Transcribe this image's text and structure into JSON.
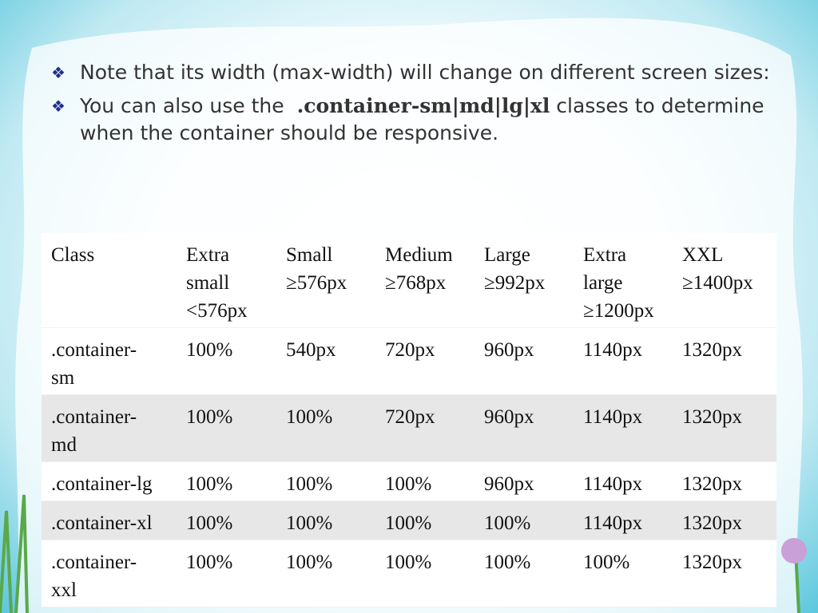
{
  "bullets": [
    {
      "text": "Note that its width (max-width) will change on different screen sizes:"
    },
    {
      "text": "You can also use the",
      "bold": ".container-sm|md|lg|xl",
      "after": "classes to determine when the container should be responsive."
    }
  ],
  "table": {
    "header": [
      [
        "Class"
      ],
      [
        "Extra",
        "small",
        "<576px"
      ],
      [
        "Small",
        "≥576px"
      ],
      [
        "Medium",
        "≥768px"
      ],
      [
        "Large",
        "≥992px"
      ],
      [
        "Extra",
        "large",
        "≥1200px"
      ],
      [
        "XXL",
        "≥1400px"
      ]
    ],
    "rows": [
      [
        [
          ".container-",
          "sm"
        ],
        [
          "100%"
        ],
        [
          "540px"
        ],
        [
          "720px"
        ],
        [
          "960px"
        ],
        [
          "1140px"
        ],
        [
          "1320px"
        ]
      ],
      [
        [
          ".container-",
          "md"
        ],
        [
          "100%"
        ],
        [
          "100%"
        ],
        [
          "720px"
        ],
        [
          "960px"
        ],
        [
          "1140px"
        ],
        [
          "1320px"
        ]
      ],
      [
        [
          ".container-lg"
        ],
        [
          "100%"
        ],
        [
          "100%"
        ],
        [
          "100%"
        ],
        [
          "960px"
        ],
        [
          "1140px"
        ],
        [
          "1320px"
        ]
      ],
      [
        [
          ".container-xl"
        ],
        [
          "100%"
        ],
        [
          "100%"
        ],
        [
          "100%"
        ],
        [
          "100%"
        ],
        [
          "1140px"
        ],
        [
          "1320px"
        ]
      ],
      [
        [
          ".container-",
          "xxl"
        ],
        [
          "100%"
        ],
        [
          "100%"
        ],
        [
          "100%"
        ],
        [
          "100%"
        ],
        [
          "100%"
        ],
        [
          "1320px"
        ]
      ]
    ]
  }
}
